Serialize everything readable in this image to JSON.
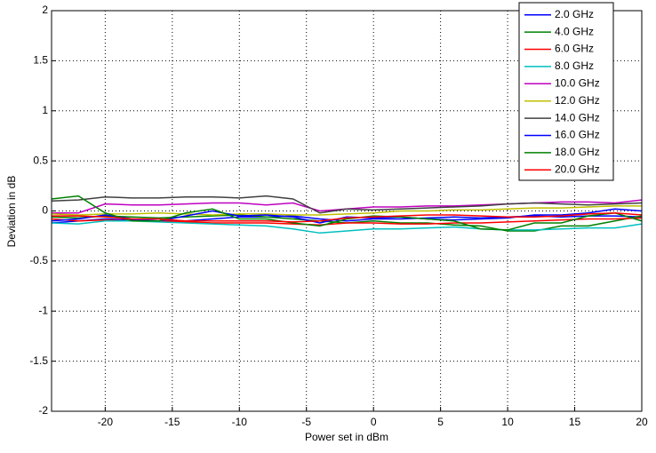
{
  "chart_data": {
    "type": "line",
    "xlabel": "Power set in dBm",
    "ylabel": "Deviation in dB",
    "x": [
      -24,
      -22,
      -20,
      -18,
      -16,
      -14,
      -12,
      -10,
      -8,
      -6,
      -4,
      -2,
      0,
      2,
      4,
      6,
      8,
      10,
      12,
      14,
      16,
      18,
      20
    ],
    "xlim": [
      -24,
      20
    ],
    "xticks": [
      -20,
      -15,
      -10,
      -5,
      0,
      5,
      10,
      15,
      20
    ],
    "ylim": [
      -2,
      2
    ],
    "yticks": [
      -2,
      -1.5,
      -1,
      -0.5,
      0,
      0.5,
      1,
      1.5,
      2
    ],
    "grid": true,
    "legend": "northeast",
    "series": [
      {
        "name": "2.0 GHz",
        "color": "#0000ff",
        "values": [
          -0.12,
          -0.1,
          -0.08,
          -0.09,
          -0.1,
          -0.1,
          -0.08,
          -0.06,
          -0.06,
          -0.05,
          -0.08,
          -0.1,
          -0.08,
          -0.08,
          -0.07,
          -0.06,
          -0.07,
          -0.06,
          -0.05,
          -0.06,
          -0.05,
          -0.05,
          -0.06
        ]
      },
      {
        "name": "4.0 GHz",
        "color": "#008000",
        "values": [
          -0.06,
          -0.07,
          -0.05,
          -0.06,
          -0.07,
          -0.06,
          -0.05,
          -0.04,
          -0.06,
          -0.08,
          -0.1,
          -0.12,
          -0.1,
          -0.12,
          -0.12,
          -0.14,
          -0.15,
          -0.2,
          -0.2,
          -0.15,
          -0.15,
          -0.1,
          -0.05
        ]
      },
      {
        "name": "6.0 GHz",
        "color": "#ff0000",
        "values": [
          -0.08,
          -0.1,
          -0.09,
          -0.1,
          -0.1,
          -0.11,
          -0.12,
          -0.12,
          -0.12,
          -0.13,
          -0.14,
          -0.12,
          -0.12,
          -0.13,
          -0.13,
          -0.12,
          -0.12,
          -0.11,
          -0.1,
          -0.09,
          -0.08,
          -0.08,
          -0.07
        ]
      },
      {
        "name": "8.0 GHz",
        "color": "#00bfbf",
        "values": [
          -0.12,
          -0.13,
          -0.1,
          -0.1,
          -0.11,
          -0.12,
          -0.13,
          -0.14,
          -0.15,
          -0.18,
          -0.22,
          -0.2,
          -0.18,
          -0.18,
          -0.17,
          -0.16,
          -0.18,
          -0.19,
          -0.19,
          -0.18,
          -0.17,
          -0.17,
          -0.13
        ]
      },
      {
        "name": "10.0 GHz",
        "color": "#bf00bf",
        "values": [
          -0.02,
          -0.02,
          0.07,
          0.06,
          0.06,
          0.07,
          0.08,
          0.08,
          0.06,
          0.08,
          0,
          0.02,
          0.04,
          0.04,
          0.05,
          0.05,
          0.06,
          0.07,
          0.08,
          0.09,
          0.09,
          0.08,
          0.11
        ]
      },
      {
        "name": "12.0 GHz",
        "color": "#bfbf00",
        "values": [
          -0.03,
          -0.04,
          -0.03,
          -0.03,
          -0.02,
          -0.03,
          -0.04,
          -0.03,
          -0.03,
          -0.04,
          -0.04,
          -0.03,
          -0.02,
          0,
          0,
          0.01,
          0.01,
          0.02,
          0.03,
          0.03,
          0.04,
          0.05,
          0.05
        ]
      },
      {
        "name": "14.0 GHz",
        "color": "#404040",
        "values": [
          0.1,
          0.11,
          0.14,
          0.13,
          0.13,
          0.14,
          0.14,
          0.13,
          0.15,
          0.12,
          -0.02,
          0.02,
          0.01,
          0.02,
          0.03,
          0.04,
          0.05,
          0.07,
          0.08,
          0.07,
          0.06,
          0.07,
          0.08
        ]
      },
      {
        "name": "16.0 GHz",
        "color": "#0000ff",
        "values": [
          -0.1,
          -0.08,
          -0.04,
          -0.08,
          -0.1,
          -0.05,
          0,
          -0.05,
          -0.04,
          -0.06,
          -0.12,
          -0.06,
          -0.07,
          -0.06,
          -0.08,
          -0.09,
          -0.08,
          -0.07,
          -0.04,
          -0.04,
          -0.02,
          0.02,
          0
        ]
      },
      {
        "name": "18.0 GHz",
        "color": "#008000",
        "values": [
          0.12,
          0.15,
          -0.02,
          -0.1,
          -0.1,
          -0.02,
          0.02,
          -0.08,
          -0.08,
          -0.12,
          -0.15,
          -0.08,
          -0.05,
          -0.06,
          -0.08,
          -0.1,
          -0.18,
          -0.19,
          -0.12,
          -0.12,
          -0.05,
          -0.02,
          -0.1
        ]
      },
      {
        "name": "20.0 GHz",
        "color": "#ff0000",
        "values": [
          -0.05,
          -0.05,
          -0.06,
          -0.08,
          -0.08,
          -0.1,
          -0.1,
          -0.1,
          -0.1,
          -0.11,
          -0.1,
          -0.07,
          -0.06,
          -0.05,
          -0.04,
          -0.04,
          -0.05,
          -0.06,
          -0.06,
          -0.05,
          -0.03,
          -0.02,
          -0.04
        ]
      }
    ]
  }
}
